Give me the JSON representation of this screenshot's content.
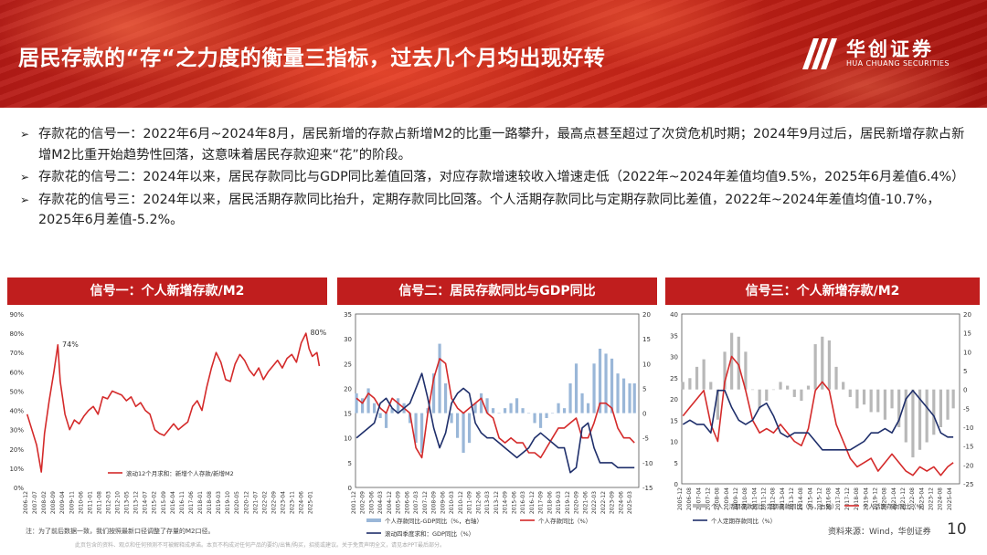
{
  "header": {
    "title": "居民存款的“存“之力度的衡量三指标，过去几个月均出现好转",
    "logo_cn": "华创证券",
    "logo_en": "HUA CHUANG SECURITIES"
  },
  "bullets": [
    "存款花的信号一：2022年6月~2024年8月，居民新增的存款占新增M2的比重一路攀升，最高点甚至超过了次贷危机时期；2024年9月过后，居民新增存款占新增M2比重开始趋势性回落，这意味着居民存款迎来“花”的阶段。",
    "存款花的信号二：2024年以来，居民存款同比与GDP同比差值回落，对应存款增速较收入增速走低（2022年~2024年差值均值9.5%，2025年6月差值6.4%）",
    "存款花的信号三：2024年以来，居民活期存款同比抬升，定期存款同比回落。个人活期存款同比与定期存款同比差值，2022年~2024年差值均值-10.7%， 2025年6月差值-5.2%。"
  ],
  "footer": {
    "note": "注：为了前后数据一致，我们按照最新口径调整了存量的M2口径。",
    "disclaimer": "此页包含的资料、观点和任何预测不可被解释成承诺。本页不构成对任何产品的要约/出售/购买，招揽或建议。关于免责声明全文，请见本PPT最后部分。",
    "source": "资料来源：Wind，华创证券",
    "page_number": "10"
  },
  "colors": {
    "brand_red": "#c01e1e",
    "line_red": "#d42a2a",
    "line_navy": "#1f2f6b",
    "bar_blue": "#9ab7d8",
    "bar_grey": "#b8b8b8"
  },
  "chart_data": [
    {
      "type": "line",
      "panel_title": "信号一：个人新增存款/M2",
      "y_axis": {
        "ticks": [
          "0%",
          "10%",
          "20%",
          "30%",
          "40%",
          "50%",
          "60%",
          "70%",
          "80%",
          "90%"
        ],
        "range": [
          0,
          90
        ],
        "unit": "%"
      },
      "x_ticks": [
        "2006-12",
        "2007-07",
        "2008-02",
        "2008-09",
        "2009-04",
        "2009-11",
        "2010-06",
        "2011-01",
        "2011-08",
        "2012-03",
        "2012-10",
        "2013-05",
        "2013-12",
        "2014-07",
        "2015-02",
        "2015-09",
        "2016-04",
        "2016-11",
        "2017-06",
        "2018-01",
        "2018-08",
        "2019-03",
        "2019-10",
        "2020-05",
        "2020-12",
        "2021-07",
        "2022-02",
        "2022-09",
        "2023-04",
        "2023-11",
        "2024-06",
        "2025-01"
      ],
      "annotations": [
        {
          "text": "74%",
          "x": "2008-11"
        },
        {
          "text": "80%",
          "x": "2024-08"
        }
      ],
      "series": [
        {
          "name": "滚动12个月求和：新增个人存款/新增M2",
          "color": "#d42a2a",
          "x": [
            2006.9,
            2007.2,
            2007.5,
            2007.8,
            2008.0,
            2008.3,
            2008.6,
            2008.85,
            2009.0,
            2009.3,
            2009.6,
            2009.9,
            2010.2,
            2010.5,
            2010.8,
            2011.1,
            2011.4,
            2011.7,
            2012.0,
            2012.3,
            2012.6,
            2012.9,
            2013.2,
            2013.5,
            2013.8,
            2014.1,
            2014.4,
            2014.7,
            2015.0,
            2015.3,
            2015.6,
            2015.9,
            2016.2,
            2016.5,
            2016.8,
            2017.1,
            2017.4,
            2017.7,
            2018.0,
            2018.3,
            2018.6,
            2018.9,
            2019.2,
            2019.5,
            2019.8,
            2020.1,
            2020.4,
            2020.7,
            2021.0,
            2021.3,
            2021.6,
            2021.9,
            2022.2,
            2022.5,
            2022.8,
            2023.1,
            2023.4,
            2023.7,
            2024.0,
            2024.3,
            2024.6,
            2024.8,
            2025.0,
            2025.3,
            2025.45
          ],
          "values": [
            38,
            30,
            22,
            8,
            28,
            45,
            60,
            74,
            55,
            38,
            30,
            35,
            33,
            37,
            40,
            42,
            38,
            47,
            46,
            50,
            49,
            48,
            45,
            47,
            42,
            44,
            40,
            38,
            30,
            28,
            27,
            30,
            33,
            30,
            32,
            34,
            42,
            45,
            40,
            52,
            62,
            70,
            65,
            56,
            55,
            64,
            69,
            66,
            61,
            58,
            62,
            56,
            60,
            63,
            66,
            62,
            67,
            69,
            65,
            75,
            80,
            72,
            68,
            70,
            63
          ]
        }
      ]
    },
    {
      "type": "bar+line",
      "panel_title": "信号二：居民存款同比与GDP同比",
      "y_left": {
        "ticks": [
          "0",
          "5",
          "10",
          "15",
          "20",
          "25",
          "30",
          "35"
        ],
        "range": [
          0,
          35
        ]
      },
      "y_right": {
        "ticks": [
          "-15",
          "-10",
          "-5",
          "0",
          "5",
          "10",
          "15",
          "20"
        ],
        "range": [
          -15,
          20
        ]
      },
      "x_ticks": [
        "2001-12",
        "2002-09",
        "2003-06",
        "2004-03",
        "2004-12",
        "2005-09",
        "2006-06",
        "2007-03",
        "2007-12",
        "2008-09",
        "2009-06",
        "2010-03",
        "2010-12",
        "2011-09",
        "2012-06",
        "2013-03",
        "2013-12",
        "2014-09",
        "2015-06",
        "2016-03",
        "2016-12",
        "2017-09",
        "2018-06",
        "2019-03",
        "2019-12",
        "2020-09",
        "2021-06",
        "2022-03",
        "2022-12",
        "2023-09",
        "2024-06",
        "2025-03"
      ],
      "legend": [
        "个人存款同比-GDP同比（%，右轴）",
        "个人存款同比（%）",
        "滚动四季度求和：GDP同比（%）"
      ],
      "series": [
        {
          "name": "个人存款同比-GDP同比（%，右轴）",
          "color": "#9ab7d8",
          "axis": "right",
          "x": [
            2002,
            2002.5,
            2003,
            2003.5,
            2004,
            2004.5,
            2005,
            2005.5,
            2006,
            2006.5,
            2007,
            2007.5,
            2008,
            2008.5,
            2009,
            2009.5,
            2010,
            2010.5,
            2011,
            2011.5,
            2012,
            2012.5,
            2013,
            2013.5,
            2014,
            2014.5,
            2015,
            2015.5,
            2016,
            2016.5,
            2017,
            2017.5,
            2018,
            2018.5,
            2019,
            2019.5,
            2020,
            2020.5,
            2021,
            2021.5,
            2022,
            2022.5,
            2023,
            2023.5,
            2024,
            2024.5,
            2025,
            2025.4
          ],
          "values": [
            4,
            3,
            5,
            2,
            -1,
            -3,
            1,
            3,
            2,
            -2,
            -6,
            -8,
            1,
            8,
            14,
            6,
            -2,
            -5,
            -8,
            -6,
            2,
            4,
            3,
            1,
            0,
            1,
            2,
            3,
            1,
            0,
            -2,
            -3,
            -1,
            0,
            2,
            1,
            6,
            10,
            4,
            2,
            10,
            13,
            12,
            11,
            8,
            7,
            6,
            6
          ]
        },
        {
          "name": "个人存款同比（%）",
          "color": "#d42a2a",
          "axis": "left",
          "x": [
            2002,
            2002.5,
            2003,
            2003.5,
            2004,
            2004.5,
            2005,
            2005.5,
            2006,
            2006.5,
            2007,
            2007.5,
            2008,
            2008.5,
            2009,
            2009.5,
            2010,
            2010.5,
            2011,
            2011.5,
            2012,
            2012.5,
            2013,
            2013.5,
            2014,
            2014.5,
            2015,
            2015.5,
            2016,
            2016.5,
            2017,
            2017.5,
            2018,
            2018.5,
            2019,
            2019.5,
            2020,
            2020.5,
            2021,
            2021.5,
            2022,
            2022.5,
            2023,
            2023.5,
            2024,
            2024.5,
            2025,
            2025.4
          ],
          "values": [
            18,
            17,
            19,
            18,
            16,
            15,
            18,
            17,
            16,
            15,
            8,
            6,
            15,
            22,
            26,
            25,
            18,
            16,
            15,
            16,
            17,
            18,
            15,
            14,
            10,
            9,
            10,
            9,
            9,
            7,
            7,
            6,
            8,
            10,
            12,
            12,
            13,
            14,
            10,
            10,
            13,
            17,
            17,
            16,
            12,
            10,
            10,
            9
          ]
        },
        {
          "name": "滚动四季度求和：GDP同比（%）",
          "color": "#1f2f6b",
          "axis": "left",
          "x": [
            2002,
            2002.5,
            2003,
            2003.5,
            2004,
            2004.5,
            2005,
            2005.5,
            2006,
            2006.5,
            2007,
            2007.5,
            2008,
            2008.5,
            2009,
            2009.5,
            2010,
            2010.5,
            2011,
            2011.5,
            2012,
            2012.5,
            2013,
            2013.5,
            2014,
            2014.5,
            2015,
            2015.5,
            2016,
            2016.5,
            2017,
            2017.5,
            2018,
            2018.5,
            2019,
            2019.5,
            2020,
            2020.5,
            2021,
            2021.5,
            2022,
            2022.5,
            2023,
            2023.5,
            2024,
            2024.5,
            2025,
            2025.4
          ],
          "values": [
            10,
            11,
            12,
            13,
            17,
            18,
            16,
            15,
            16,
            17,
            20,
            23,
            18,
            12,
            8,
            11,
            17,
            19,
            20,
            19,
            13,
            11,
            10,
            10,
            9,
            8,
            7,
            6,
            7,
            8,
            10,
            11,
            10,
            9,
            8,
            8,
            3,
            4,
            12,
            13,
            8,
            5,
            5,
            5,
            4,
            4,
            4,
            4
          ]
        }
      ]
    },
    {
      "type": "bar+line",
      "panel_title": "信号三：个人新增存款/M2",
      "y_left": {
        "ticks": [
          "0",
          "5",
          "10",
          "15",
          "20",
          "25",
          "30",
          "35",
          "40"
        ],
        "range": [
          0,
          40
        ]
      },
      "y_right": {
        "ticks": [
          "-25",
          "-20",
          "-15",
          "-10",
          "-5",
          "0",
          "5",
          "10",
          "15",
          "20"
        ],
        "range": [
          -25,
          20
        ]
      },
      "x_ticks": [
        "2005-12",
        "2006-08",
        "2007-04",
        "2007-12",
        "2008-08",
        "2009-04",
        "2009-12",
        "2010-08",
        "2011-04",
        "2011-12",
        "2012-08",
        "2013-04",
        "2013-12",
        "2014-08",
        "2015-04",
        "2015-12",
        "2016-08",
        "2017-04",
        "2017-12",
        "2018-08",
        "2019-04",
        "2019-12",
        "2020-08",
        "2021-04",
        "2021-12",
        "2022-08",
        "2023-04",
        "2023-12",
        "2024-08",
        "2025-04"
      ],
      "legend": [
        "个人：活期存款同比-定期存款同比（%，右轴）",
        "个人活期存款同比（%）",
        "个人定期存款同比（%）"
      ],
      "series": [
        {
          "name": "个人：活期存款同比-定期存款同比（%，右轴）",
          "color": "#b8b8b8",
          "axis": "right",
          "x": [
            2006,
            2006.5,
            2007,
            2007.5,
            2008,
            2008.5,
            2009,
            2009.5,
            2010,
            2010.5,
            2011,
            2011.5,
            2012,
            2012.5,
            2013,
            2013.5,
            2014,
            2014.5,
            2015,
            2015.5,
            2016,
            2016.5,
            2017,
            2017.5,
            2018,
            2018.5,
            2019,
            2019.5,
            2020,
            2020.5,
            2021,
            2021.5,
            2022,
            2022.5,
            2023,
            2023.5,
            2024,
            2024.5,
            2025,
            2025.4
          ],
          "values": [
            2,
            3,
            6,
            8,
            2,
            -8,
            10,
            15,
            14,
            10,
            0,
            -5,
            -3,
            0,
            2,
            1,
            -2,
            -3,
            1,
            12,
            14,
            13,
            6,
            2,
            -2,
            -5,
            -4,
            -6,
            -6,
            -8,
            -5,
            -10,
            -14,
            -18,
            -16,
            -14,
            -12,
            -10,
            -8,
            -5
          ]
        },
        {
          "name": "个人活期存款同比（%）",
          "color": "#d42a2a",
          "axis": "left",
          "x": [
            2006,
            2006.5,
            2007,
            2007.5,
            2008,
            2008.5,
            2009,
            2009.5,
            2010,
            2010.5,
            2011,
            2011.5,
            2012,
            2012.5,
            2013,
            2013.5,
            2014,
            2014.5,
            2015,
            2015.5,
            2016,
            2016.5,
            2017,
            2017.5,
            2018,
            2018.5,
            2019,
            2019.5,
            2020,
            2020.5,
            2021,
            2021.5,
            2022,
            2022.5,
            2023,
            2023.5,
            2024,
            2024.5,
            2025,
            2025.4
          ],
          "values": [
            16,
            18,
            20,
            22,
            14,
            10,
            24,
            30,
            28,
            22,
            15,
            12,
            13,
            12,
            14,
            12,
            10,
            9,
            13,
            22,
            24,
            22,
            14,
            10,
            6,
            4,
            5,
            6,
            3,
            5,
            7,
            5,
            3,
            2,
            4,
            3,
            4,
            2,
            4,
            5
          ]
        },
        {
          "name": "个人定期存款同比（%）",
          "color": "#1f2f6b",
          "axis": "left",
          "x": [
            2006,
            2006.5,
            2007,
            2007.5,
            2008,
            2008.5,
            2009,
            2009.5,
            2010,
            2010.5,
            2011,
            2011.5,
            2012,
            2012.5,
            2013,
            2013.5,
            2014,
            2014.5,
            2015,
            2015.5,
            2016,
            2016.5,
            2017,
            2017.5,
            2018,
            2018.5,
            2019,
            2019.5,
            2020,
            2020.5,
            2021,
            2021.5,
            2022,
            2022.5,
            2023,
            2023.5,
            2024,
            2024.5,
            2025,
            2025.4
          ],
          "values": [
            14,
            15,
            14,
            14,
            12,
            22,
            22,
            18,
            15,
            14,
            15,
            18,
            19,
            16,
            12,
            11,
            12,
            12,
            12,
            10,
            8,
            8,
            8,
            8,
            8,
            9,
            10,
            12,
            12,
            13,
            12,
            15,
            20,
            22,
            20,
            18,
            16,
            12,
            11,
            11
          ]
        }
      ]
    }
  ]
}
